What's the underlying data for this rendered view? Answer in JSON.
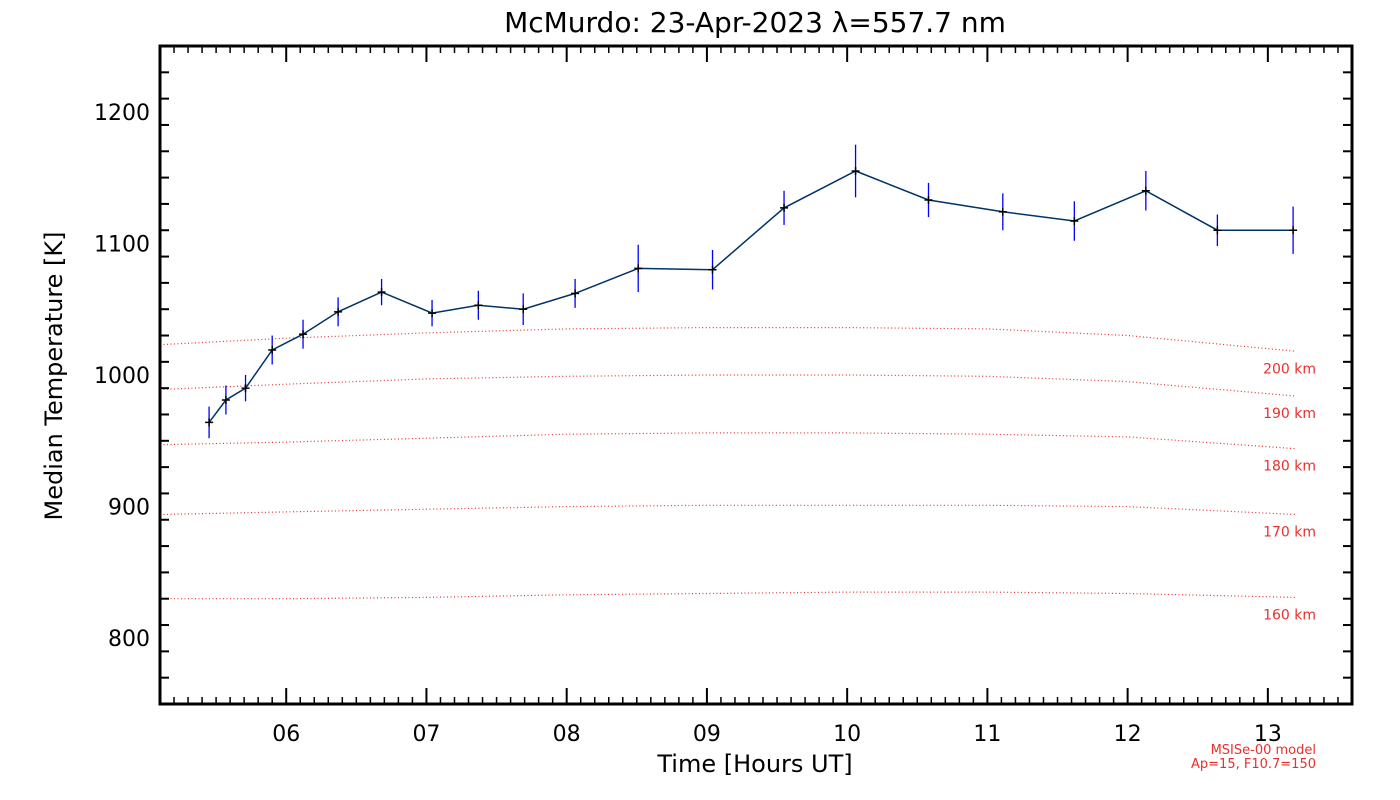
{
  "chart_data": {
    "type": "line",
    "title": "McMurdo: 23-Apr-2023 λ=557.7 nm",
    "xlabel": "Time [Hours UT]",
    "ylabel": "Median Temperature [K]",
    "xlim": [
      5.1,
      13.6
    ],
    "ylim": [
      750,
      1250
    ],
    "x_ticks": [
      6,
      7,
      8,
      9,
      10,
      11,
      12,
      13
    ],
    "x_tick_labels": [
      "06",
      "07",
      "08",
      "09",
      "10",
      "11",
      "12",
      "13"
    ],
    "y_ticks": [
      800,
      900,
      1000,
      1100,
      1200
    ],
    "y_tick_labels": [
      "800",
      "900",
      "1000",
      "1100",
      "1200"
    ],
    "grid": false,
    "colors": {
      "series": "#003366",
      "errorbar": "#0000ff",
      "marker": "#000000",
      "model": "#e8312e",
      "frame": "#000000"
    },
    "series": [
      {
        "x": [
          5.45,
          5.57,
          5.71,
          5.9,
          6.12,
          6.37,
          6.68,
          7.04,
          7.37,
          7.69,
          8.06,
          8.51,
          9.04,
          9.55,
          10.06,
          10.58,
          11.11,
          11.62,
          12.13,
          12.64,
          13.18
        ],
        "y": [
          964,
          981,
          990,
          1019,
          1031,
          1048,
          1063,
          1047,
          1053,
          1050,
          1062,
          1081,
          1080,
          1127,
          1155,
          1133,
          1124,
          1117,
          1140,
          1110,
          1110
        ],
        "err": [
          12,
          11,
          10,
          11,
          11,
          11,
          10,
          10,
          11,
          12,
          11,
          18,
          15,
          13,
          20,
          13,
          14,
          15,
          15,
          12,
          18
        ]
      }
    ],
    "model_curves": [
      {
        "label": "200 km",
        "x": [
          5.1,
          6.0,
          7.0,
          8.0,
          9.0,
          10.0,
          11.0,
          12.0,
          13.2
        ],
        "y": [
          1023,
          1028,
          1032,
          1035,
          1036,
          1036,
          1035,
          1030,
          1018
        ]
      },
      {
        "label": "190 km",
        "x": [
          5.1,
          6.0,
          7.0,
          8.0,
          9.0,
          10.0,
          11.0,
          12.0,
          13.2
        ],
        "y": [
          989,
          993,
          997,
          999,
          1000,
          1000,
          999,
          995,
          984
        ]
      },
      {
        "label": "180 km",
        "x": [
          5.1,
          6.0,
          7.0,
          8.0,
          9.0,
          10.0,
          11.0,
          12.0,
          13.2
        ],
        "y": [
          947,
          949,
          952,
          955,
          956,
          956,
          955,
          953,
          944
        ]
      },
      {
        "label": "170 km",
        "x": [
          5.1,
          6.0,
          7.0,
          8.0,
          9.0,
          10.0,
          11.0,
          12.0,
          13.2
        ],
        "y": [
          894,
          896,
          898,
          900,
          901,
          901,
          901,
          900,
          894
        ]
      },
      {
        "label": "160 km",
        "x": [
          5.1,
          6.0,
          7.0,
          8.0,
          9.0,
          10.0,
          11.0,
          12.0,
          13.2
        ],
        "y": [
          830,
          830,
          831,
          833,
          834,
          835,
          835,
          834,
          831
        ]
      }
    ],
    "annotations": [
      "MSISe-00 model",
      "Ap=15, F10.7=150"
    ]
  }
}
